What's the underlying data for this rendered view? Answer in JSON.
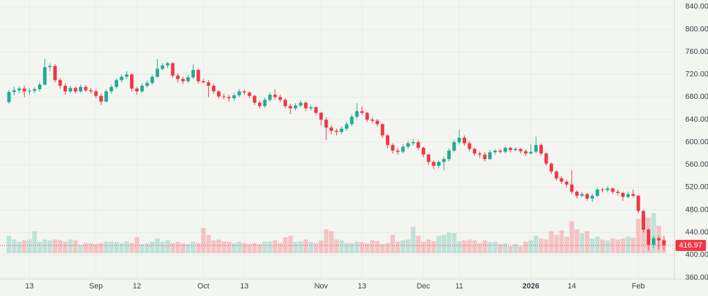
{
  "chart_data": {
    "type": "candlestick",
    "up_color": "#22ab94",
    "down_color": "#f23645",
    "ylim": [
      358,
      852
    ],
    "yticks": [
      {
        "value": 360,
        "label": "360.00"
      },
      {
        "value": 400,
        "label": "400.00"
      },
      {
        "value": 440,
        "label": "440.00"
      },
      {
        "value": 480,
        "label": "480.00"
      },
      {
        "value": 520,
        "label": "520.00"
      },
      {
        "value": 560,
        "label": "560.00"
      },
      {
        "value": 600,
        "label": "600.00"
      },
      {
        "value": 640,
        "label": "640.00"
      },
      {
        "value": 680,
        "label": "680.00"
      },
      {
        "value": 720,
        "label": "720.00"
      },
      {
        "value": 760,
        "label": "760.00"
      },
      {
        "value": 800,
        "label": "800.00"
      },
      {
        "value": 840,
        "label": "840.00"
      }
    ],
    "grid": true,
    "last_price": 416.97,
    "categories": [
      null,
      null,
      null,
      null,
      "13",
      null,
      null,
      null,
      null,
      null,
      null,
      null,
      null,
      null,
      null,
      null,
      null,
      "Sep",
      null,
      null,
      null,
      null,
      null,
      null,
      null,
      "12",
      null,
      null,
      null,
      null,
      null,
      null,
      null,
      null,
      null,
      null,
      null,
      null,
      "Oct",
      null,
      null,
      null,
      null,
      null,
      null,
      null,
      "13",
      null,
      null,
      null,
      null,
      null,
      null,
      null,
      null,
      null,
      null,
      null,
      null,
      null,
      null,
      "Nov",
      null,
      null,
      null,
      null,
      null,
      null,
      null,
      "13",
      null,
      null,
      null,
      null,
      null,
      null,
      null,
      null,
      null,
      null,
      null,
      "Dec",
      null,
      null,
      null,
      null,
      null,
      null,
      "11",
      null,
      null,
      null,
      null,
      null,
      null,
      null,
      null,
      null,
      null,
      null,
      null,
      null,
      "2026",
      null,
      null,
      null,
      null,
      null,
      null,
      null,
      "14",
      null,
      null,
      null,
      null,
      null,
      null,
      null,
      null,
      null,
      null,
      null,
      null,
      "Feb",
      null,
      null,
      null,
      null,
      null
    ],
    "ohlc": [
      [
        671,
        693,
        668,
        689
      ],
      [
        689,
        698,
        683,
        692
      ],
      [
        692,
        699,
        686,
        695
      ],
      [
        695,
        700,
        680,
        690
      ],
      [
        690,
        695,
        684,
        691
      ],
      [
        691,
        697,
        687,
        694
      ],
      [
        694,
        706,
        690,
        702
      ],
      [
        702,
        748,
        700,
        733
      ],
      [
        733,
        740,
        726,
        735
      ],
      [
        735,
        738,
        706,
        710
      ],
      [
        710,
        714,
        695,
        700
      ],
      [
        700,
        704,
        684,
        690
      ],
      [
        690,
        700,
        687,
        696
      ],
      [
        696,
        699,
        686,
        690
      ],
      [
        690,
        702,
        688,
        698
      ],
      [
        698,
        701,
        689,
        692
      ],
      [
        692,
        696,
        686,
        690
      ],
      [
        690,
        693,
        678,
        682
      ],
      [
        682,
        686,
        666,
        672
      ],
      [
        672,
        694,
        670,
        690
      ],
      [
        690,
        702,
        686,
        698
      ],
      [
        698,
        713,
        695,
        710
      ],
      [
        710,
        720,
        706,
        716
      ],
      [
        716,
        726,
        712,
        720
      ],
      [
        720,
        722,
        690,
        695
      ],
      [
        695,
        698,
        684,
        690
      ],
      [
        690,
        704,
        687,
        700
      ],
      [
        700,
        709,
        697,
        705
      ],
      [
        705,
        720,
        702,
        716
      ],
      [
        716,
        747,
        714,
        730
      ],
      [
        730,
        740,
        727,
        736
      ],
      [
        736,
        743,
        731,
        740
      ],
      [
        740,
        742,
        714,
        718
      ],
      [
        718,
        722,
        706,
        712
      ],
      [
        712,
        716,
        703,
        708
      ],
      [
        708,
        719,
        705,
        715
      ],
      [
        715,
        738,
        712,
        728
      ],
      [
        728,
        731,
        704,
        708
      ],
      [
        708,
        712,
        704,
        706
      ],
      [
        706,
        710,
        680,
        700
      ],
      [
        700,
        704,
        686,
        690
      ],
      [
        690,
        692,
        677,
        681
      ],
      [
        681,
        686,
        676,
        680
      ],
      [
        680,
        684,
        672,
        678
      ],
      [
        678,
        687,
        674,
        683
      ],
      [
        683,
        694,
        680,
        690
      ],
      [
        690,
        693,
        684,
        688
      ],
      [
        688,
        690,
        678,
        682
      ],
      [
        682,
        684,
        666,
        670
      ],
      [
        670,
        673,
        660,
        664
      ],
      [
        664,
        679,
        661,
        675
      ],
      [
        675,
        688,
        672,
        684
      ],
      [
        684,
        694,
        676,
        680
      ],
      [
        680,
        684,
        672,
        675
      ],
      [
        675,
        678,
        660,
        664
      ],
      [
        664,
        668,
        650,
        660
      ],
      [
        660,
        669,
        656,
        665
      ],
      [
        665,
        674,
        662,
        670
      ],
      [
        670,
        672,
        655,
        660
      ],
      [
        660,
        666,
        656,
        662
      ],
      [
        662,
        664,
        648,
        652
      ],
      [
        652,
        654,
        630,
        640
      ],
      [
        640,
        644,
        604,
        626
      ],
      [
        626,
        630,
        614,
        620
      ],
      [
        620,
        624,
        612,
        618
      ],
      [
        618,
        628,
        614,
        624
      ],
      [
        624,
        636,
        620,
        632
      ],
      [
        632,
        649,
        628,
        645
      ],
      [
        645,
        669,
        641,
        655
      ],
      [
        655,
        663,
        648,
        652
      ],
      [
        652,
        654,
        636,
        640
      ],
      [
        640,
        644,
        634,
        638
      ],
      [
        638,
        641,
        628,
        632
      ],
      [
        632,
        634,
        608,
        612
      ],
      [
        612,
        614,
        590,
        595
      ],
      [
        595,
        598,
        580,
        585
      ],
      [
        585,
        590,
        578,
        583
      ],
      [
        583,
        596,
        580,
        592
      ],
      [
        592,
        602,
        588,
        598
      ],
      [
        598,
        606,
        594,
        600
      ],
      [
        600,
        604,
        586,
        590
      ],
      [
        590,
        592,
        574,
        578
      ],
      [
        578,
        580,
        560,
        565
      ],
      [
        565,
        568,
        552,
        558
      ],
      [
        558,
        568,
        554,
        565
      ],
      [
        565,
        574,
        550,
        570
      ],
      [
        570,
        589,
        566,
        585
      ],
      [
        585,
        604,
        582,
        600
      ],
      [
        600,
        622,
        596,
        608
      ],
      [
        608,
        612,
        594,
        598
      ],
      [
        598,
        602,
        584,
        588
      ],
      [
        588,
        590,
        576,
        580
      ],
      [
        580,
        584,
        572,
        578
      ],
      [
        578,
        582,
        566,
        570
      ],
      [
        570,
        586,
        568,
        582
      ],
      [
        582,
        588,
        578,
        585
      ],
      [
        585,
        588,
        580,
        583
      ],
      [
        583,
        593,
        580,
        590
      ],
      [
        590,
        592,
        582,
        586
      ],
      [
        586,
        591,
        584,
        588
      ],
      [
        588,
        590,
        580,
        584
      ],
      [
        584,
        587,
        576,
        580
      ],
      [
        580,
        596,
        578,
        583
      ],
      [
        583,
        610,
        580,
        595
      ],
      [
        595,
        598,
        576,
        580
      ],
      [
        580,
        582,
        558,
        562
      ],
      [
        562,
        564,
        544,
        548
      ],
      [
        548,
        550,
        532,
        536
      ],
      [
        536,
        540,
        526,
        530
      ],
      [
        530,
        533,
        520,
        525
      ],
      [
        525,
        550,
        508,
        512
      ],
      [
        512,
        515,
        500,
        505
      ],
      [
        505,
        512,
        502,
        508
      ],
      [
        508,
        510,
        496,
        500
      ],
      [
        500,
        509,
        494,
        505
      ],
      [
        505,
        520,
        502,
        516
      ],
      [
        516,
        519,
        511,
        515
      ],
      [
        515,
        522,
        512,
        518
      ],
      [
        518,
        520,
        508,
        512
      ],
      [
        512,
        516,
        506,
        510
      ],
      [
        510,
        512,
        496,
        503
      ],
      [
        503,
        512,
        500,
        508
      ],
      [
        508,
        516,
        502,
        505
      ],
      [
        505,
        507,
        474,
        478
      ],
      [
        478,
        480,
        440,
        445
      ],
      [
        445,
        448,
        408,
        418
      ],
      [
        418,
        434,
        412,
        430
      ],
      [
        430,
        434,
        410,
        426
      ],
      [
        426,
        434,
        408,
        416.97
      ]
    ],
    "volume": [
      38,
      30,
      25,
      28,
      30,
      48,
      25,
      30,
      28,
      30,
      28,
      25,
      30,
      28,
      18,
      22,
      22,
      20,
      22,
      25,
      25,
      24,
      22,
      26,
      22,
      35,
      20,
      22,
      25,
      32,
      25,
      28,
      22,
      25,
      22,
      20,
      25,
      22,
      55,
      40,
      28,
      30,
      26,
      25,
      22,
      25,
      22,
      20,
      22,
      20,
      25,
      26,
      28,
      22,
      35,
      38,
      25,
      26,
      30,
      25,
      22,
      28,
      52,
      48,
      30,
      28,
      22,
      22,
      25,
      24,
      22,
      28,
      26,
      20,
      22,
      40,
      25,
      28,
      30,
      58,
      38,
      25,
      30,
      26,
      38,
      40,
      45,
      44,
      26,
      28,
      30,
      28,
      22,
      28,
      24,
      25,
      20,
      22,
      15,
      20,
      15,
      25,
      28,
      38,
      32,
      30,
      48,
      40,
      50,
      36,
      70,
      52,
      44,
      48,
      32,
      36,
      30,
      28,
      32,
      30,
      32,
      36,
      34,
      75,
      80,
      78,
      88,
      60,
      30
    ]
  }
}
